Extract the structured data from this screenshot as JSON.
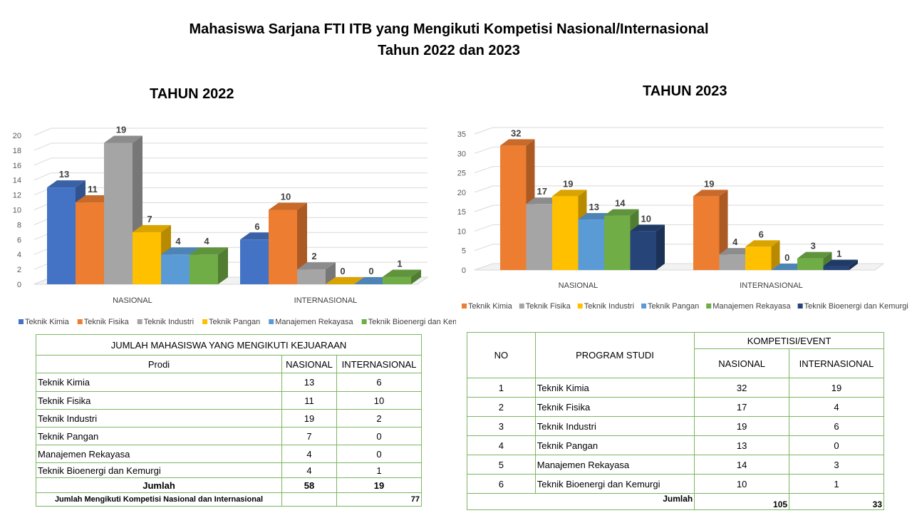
{
  "header": {
    "title_line1": "Mahasiswa Sarjana FTI ITB yang Mengikuti Kompetisi Nasional/Internasional",
    "title_line2": "Tahun  2022 dan 2023"
  },
  "colors": {
    "Teknik Kimia 2022": "#4472c4",
    "Teknik Fisika": "#ed7d31",
    "Teknik Industri": "#a5a5a5",
    "Teknik Pangan 2022": "#ffc000",
    "Manajemen Rekayasa": "#5b9bd5",
    "Teknik Bioenergi dan Kemurgi": "#70ad47",
    "2023 Teknik Kimia": "#ed7d31",
    "2023 Teknik Fisika": "#a5a5a5",
    "2023 Teknik Industri": "#ffc000",
    "2023 Teknik Pangan": "#5b9bd5",
    "2023 Manajemen Rekayasa": "#70ad47",
    "2023 Teknik Bioenergi": "#264478",
    "table_border": "#7bb661"
  },
  "chart_data": [
    {
      "type": "bar",
      "title": "TAHUN 2022",
      "categories": [
        "NASIONAL",
        "INTERNASIONAL"
      ],
      "ylim": [
        0,
        20
      ],
      "yticks": [
        0,
        2,
        4,
        6,
        8,
        10,
        12,
        14,
        16,
        18,
        20
      ],
      "legend_position": "bottom",
      "series": [
        {
          "name": "Teknik Kimia",
          "values": [
            13,
            6
          ],
          "color": "#4472c4"
        },
        {
          "name": "Teknik Fisika",
          "values": [
            11,
            10
          ],
          "color": "#ed7d31"
        },
        {
          "name": "Teknik Industri",
          "values": [
            19,
            2
          ],
          "color": "#a5a5a5"
        },
        {
          "name": "Teknik Pangan",
          "values": [
            7,
            0
          ],
          "color": "#ffc000"
        },
        {
          "name": "Manajemen Rekayasa",
          "values": [
            4,
            0
          ],
          "color": "#5b9bd5"
        },
        {
          "name": "Teknik Bioenergi dan Kemurgi",
          "values": [
            4,
            1
          ],
          "color": "#70ad47"
        }
      ]
    },
    {
      "type": "bar",
      "title": "TAHUN 2023",
      "categories": [
        "NASIONAL",
        "INTERNASIONAL"
      ],
      "ylim": [
        0,
        35
      ],
      "yticks": [
        0,
        5,
        10,
        15,
        20,
        25,
        30,
        35
      ],
      "legend_position": "bottom",
      "series": [
        {
          "name": "Teknik Kimia",
          "values": [
            32,
            19
          ],
          "color": "#ed7d31"
        },
        {
          "name": "Teknik Fisika",
          "values": [
            17,
            4
          ],
          "color": "#a5a5a5"
        },
        {
          "name": "Teknik Industri",
          "values": [
            19,
            6
          ],
          "color": "#ffc000"
        },
        {
          "name": "Teknik Pangan",
          "values": [
            13,
            0
          ],
          "color": "#5b9bd5"
        },
        {
          "name": "Manajemen Rekayasa",
          "values": [
            14,
            3
          ],
          "color": "#70ad47"
        },
        {
          "name": "Teknik Bioenergi dan Kemurgi",
          "values": [
            10,
            1
          ],
          "color": "#264478"
        }
      ]
    }
  ],
  "table2022": {
    "title": "JUMLAH MAHASISWA YANG MENGIKUTI KEJUARAAN",
    "headers": [
      "Prodi",
      "NASIONAL",
      "INTERNASIONAL"
    ],
    "rows": [
      [
        "Teknik Kimia",
        "13",
        "6"
      ],
      [
        "Teknik Fisika",
        "11",
        "10"
      ],
      [
        "Teknik Industri",
        "19",
        "2"
      ],
      [
        "Teknik Pangan",
        "7",
        "0"
      ],
      [
        "Manajemen Rekayasa",
        "4",
        "0"
      ],
      [
        "Teknik Bioenergi dan Kemurgi",
        "4",
        "1"
      ]
    ],
    "total_label": "Jumlah",
    "total_nasional": "58",
    "total_internasional": "19",
    "grand_label": "Jumlah Mengikuti Kompetisi Nasional dan Internasional",
    "grand_value": "77"
  },
  "table2023": {
    "header_no": "NO",
    "header_prodi": "PROGRAM STUDI",
    "header_group": "KOMPETISI/EVENT",
    "header_nasional": "NASIONAL",
    "header_internasional": "INTERNASIONAL",
    "rows": [
      [
        "1",
        "Teknik Kimia",
        "32",
        "19"
      ],
      [
        "2",
        "Teknik Fisika",
        "17",
        "4"
      ],
      [
        "3",
        "Teknik Industri",
        "19",
        "6"
      ],
      [
        "4",
        "Teknik Pangan",
        "13",
        "0"
      ],
      [
        "5",
        "Manajemen Rekayasa",
        "14",
        "3"
      ],
      [
        "6",
        "Teknik Bioenergi dan Kemurgi",
        "10",
        "1"
      ]
    ],
    "total_label": "Jumlah",
    "total_nasional": "105",
    "total_internasional": "33"
  }
}
